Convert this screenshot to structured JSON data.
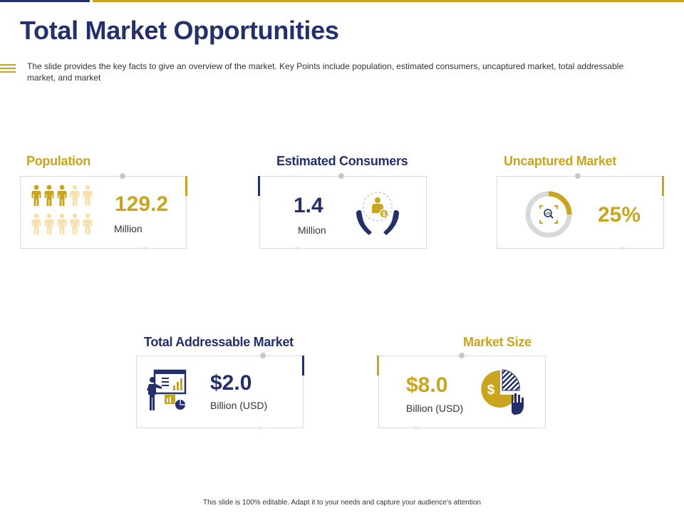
{
  "title": "Total Market Opportunities",
  "subtitle": "The slide provides  the key facts to give  an overview  of the market. Key Points include population, estimated consumers, uncaptured market, total addressable market, and market",
  "cards": {
    "population": {
      "label": "Population",
      "value": "129.2",
      "unit": "Million"
    },
    "estimated_consumers": {
      "label": "Estimated Consumers",
      "value": "1.4",
      "unit": "Million"
    },
    "uncaptured_market": {
      "label": "Uncaptured Market",
      "value": "25%",
      "fraction": 0.25
    },
    "total_addressable_market": {
      "label": "Total Addressable Market",
      "value": "$2.0",
      "unit": "Billion (USD)"
    },
    "market_size": {
      "label": "Market Size",
      "value": "$8.0",
      "unit": "Billion (USD)"
    }
  },
  "footer": "This slide is 100% editable.  Adapt it to your needs and capture your audience's attention",
  "colors": {
    "navy": "#23306b",
    "gold": "#c9a41e",
    "light_gold": "#f5e1b0",
    "gray": "#d9d9d9"
  },
  "icons": {
    "population": "people-icon",
    "estimated_consumers": "hands-money-icon",
    "uncaptured_market": "donut-search-icon",
    "total_addressable_market": "presenter-icon",
    "market_size": "pie-dollar-icon"
  }
}
